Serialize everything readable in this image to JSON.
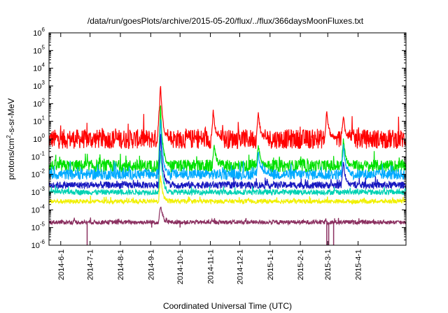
{
  "chart_data": {
    "type": "line",
    "title": "/data/run/goesPlots/archive/2015-05-20/flux/../flux/366daysMoonFluxes.txt",
    "xlabel": "Coordinated Universal Time (UTC)",
    "ylabel": "protons/cm2-s-sr-MeV",
    "ylabel_parts": {
      "prefix": "protons/cm",
      "sup": "2",
      "suffix": "-s-sr-MeV"
    },
    "yscale": "log",
    "ylim": [
      1e-06,
      1000000.0
    ],
    "xlim": [
      "2014-05-20",
      "2015-05-20"
    ],
    "grid": false,
    "legend": "none",
    "x_ticks": [
      "2014-6-1",
      "2014-7-1",
      "2014-8-1",
      "2014-9-1",
      "2014-10-1",
      "2014-11-1",
      "2014-12-1",
      "2015-1-1",
      "2015-2-1",
      "2015-3-1",
      "2015-4-1"
    ],
    "y_ticks": [
      {
        "value": 1e-06,
        "mantissa": "10",
        "exp": "-6"
      },
      {
        "value": 1e-05,
        "mantissa": "10",
        "exp": "-5"
      },
      {
        "value": 0.0001,
        "mantissa": "10",
        "exp": "-4"
      },
      {
        "value": 0.001,
        "mantissa": "10",
        "exp": "-3"
      },
      {
        "value": 0.01,
        "mantissa": "10",
        "exp": "-2"
      },
      {
        "value": 0.1,
        "mantissa": "10",
        "exp": "-1"
      },
      {
        "value": 1,
        "mantissa": "10",
        "exp": "0"
      },
      {
        "value": 10,
        "mantissa": "10",
        "exp": "1"
      },
      {
        "value": 100,
        "mantissa": "10",
        "exp": "2"
      },
      {
        "value": 1000,
        "mantissa": "10",
        "exp": "3"
      },
      {
        "value": 10000,
        "mantissa": "10",
        "exp": "4"
      },
      {
        "value": 100000,
        "mantissa": "10",
        "exp": "5"
      },
      {
        "value": 1000000,
        "mantissa": "10",
        "exp": "6"
      }
    ],
    "series": [
      {
        "color": "#ff0000",
        "baseline": 1.0,
        "noise_decades": 0.55,
        "peaks": [
          {
            "date": "2014-09-11",
            "value": 2000
          },
          {
            "date": "2014-09-10",
            "value": 100
          },
          {
            "date": "2014-11-04",
            "value": 40
          },
          {
            "date": "2014-12-20",
            "value": 30
          },
          {
            "date": "2015-02-28",
            "value": 40
          },
          {
            "date": "2015-03-17",
            "value": 20
          }
        ]
      },
      {
        "color": "#00e000",
        "baseline": 0.03,
        "noise_decades": 0.35,
        "peaks": [
          {
            "date": "2014-09-11",
            "value": 100
          },
          {
            "date": "2014-11-05",
            "value": 0.5
          },
          {
            "date": "2014-12-20",
            "value": 0.5
          },
          {
            "date": "2015-03-17",
            "value": 1.0
          }
        ]
      },
      {
        "color": "#00aaff",
        "baseline": 0.01,
        "noise_decades": 0.3,
        "peaks": [
          {
            "date": "2014-09-11",
            "value": 20
          },
          {
            "date": "2014-12-20",
            "value": 0.2
          },
          {
            "date": "2015-03-17",
            "value": 0.5
          }
        ]
      },
      {
        "color": "#1818c0",
        "baseline": 0.0025,
        "noise_decades": 0.2,
        "peaks": [
          {
            "date": "2014-09-11",
            "value": 3
          },
          {
            "date": "2015-03-17",
            "value": 0.05
          }
        ]
      },
      {
        "color": "#00d2b4",
        "baseline": 0.001,
        "noise_decades": 0.15,
        "peaks": [
          {
            "date": "2014-09-11",
            "value": 0.3
          }
        ]
      },
      {
        "color": "#f0f000",
        "baseline": 0.0003,
        "noise_decades": 0.12,
        "peaks": [
          {
            "date": "2014-09-11",
            "value": 0.01
          }
        ]
      },
      {
        "color": "#8b3060",
        "baseline": 2e-05,
        "noise_decades": 0.12,
        "peaks": [
          {
            "date": "2014-09-11",
            "value": 0.0002
          }
        ]
      }
    ],
    "dropouts": [
      {
        "date": "2014-06-28",
        "value": 1e-06
      },
      {
        "date": "2015-02-28",
        "value": 1e-06
      },
      {
        "date": "2015-03-02",
        "value": 1e-06
      },
      {
        "date": "2015-03-07",
        "value": 1e-06
      },
      {
        "date": "2014-10-01",
        "value": 1e-05
      },
      {
        "date": "2014-09-02",
        "value": 1e-05
      }
    ]
  }
}
